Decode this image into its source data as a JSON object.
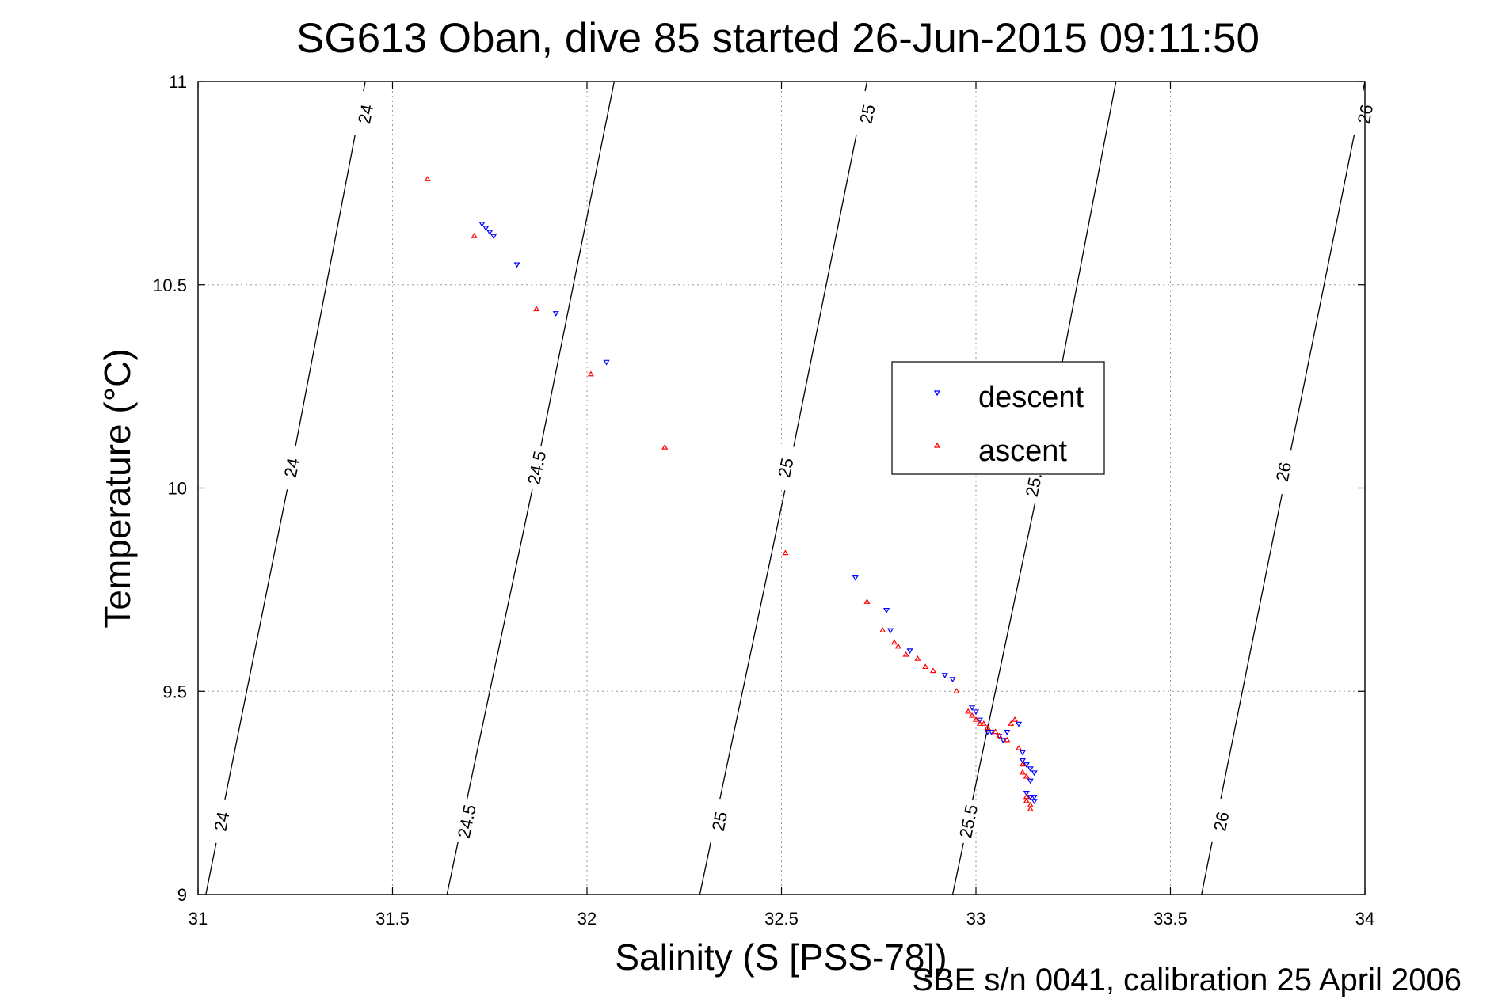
{
  "chart_data": {
    "type": "scatter",
    "title": "SG613 Oban, dive 85 started 26-Jun-2015 09:11:50",
    "xlabel": "Salinity (S [PSS-78])",
    "ylabel": "Temperature (°C)",
    "footnote": "SBE s/n 0041, calibration 25 April 2006",
    "xlim": [
      31,
      34
    ],
    "ylim": [
      9,
      11
    ],
    "xticks": [
      "31",
      "31.5",
      "32",
      "32.5",
      "33",
      "33.5",
      "34"
    ],
    "yticks": [
      "9",
      "9.5",
      "10",
      "10.5",
      "11"
    ],
    "grid": true,
    "legend_position": "center-right",
    "density_contours": [
      {
        "label": "24",
        "points": [
          [
            31.02,
            9.0
          ],
          [
            31.23,
            10.0
          ],
          [
            31.43,
            11.0
          ]
        ],
        "label_positions": [
          [
            31.06,
            9.18
          ],
          [
            31.24,
            10.05
          ],
          [
            31.43,
            10.92
          ]
        ]
      },
      {
        "label": "24.5",
        "points": [
          [
            31.64,
            9.0
          ],
          [
            31.86,
            10.0
          ],
          [
            32.07,
            11.0
          ]
        ],
        "label_positions": [
          [
            31.69,
            9.18
          ],
          [
            31.87,
            10.05
          ],
          null
        ]
      },
      {
        "label": "25",
        "points": [
          [
            32.29,
            9.0
          ],
          [
            32.51,
            10.0
          ],
          [
            32.72,
            11.0
          ]
        ],
        "label_positions": [
          [
            32.34,
            9.18
          ],
          [
            32.51,
            10.05
          ],
          [
            32.72,
            10.92
          ]
        ]
      },
      {
        "label": "25.5",
        "points": [
          [
            32.94,
            9.0
          ],
          [
            33.16,
            10.0
          ],
          [
            33.36,
            11.0
          ]
        ],
        "label_positions": [
          [
            32.98,
            9.18
          ],
          [
            33.15,
            10.02
          ],
          null
        ]
      },
      {
        "label": "26",
        "points": [
          [
            33.58,
            9.0
          ],
          [
            33.79,
            10.0
          ],
          [
            34.0,
            11.0
          ]
        ],
        "label_positions": [
          [
            33.63,
            9.18
          ],
          [
            33.79,
            10.04
          ],
          [
            34.0,
            10.92
          ]
        ]
      }
    ],
    "series": [
      {
        "name": "descent",
        "color": "#0000ff",
        "marker": "triangle-down",
        "points": [
          [
            31.73,
            10.65
          ],
          [
            31.74,
            10.64
          ],
          [
            31.75,
            10.63
          ],
          [
            31.76,
            10.62
          ],
          [
            31.82,
            10.55
          ],
          [
            31.92,
            10.43
          ],
          [
            32.05,
            10.31
          ],
          [
            32.69,
            9.78
          ],
          [
            32.77,
            9.7
          ],
          [
            32.78,
            9.65
          ],
          [
            32.83,
            9.6
          ],
          [
            32.92,
            9.54
          ],
          [
            32.94,
            9.53
          ],
          [
            32.99,
            9.46
          ],
          [
            33.0,
            9.45
          ],
          [
            33.01,
            9.43
          ],
          [
            33.03,
            9.4
          ],
          [
            33.04,
            9.4
          ],
          [
            33.06,
            9.39
          ],
          [
            33.07,
            9.38
          ],
          [
            33.08,
            9.4
          ],
          [
            33.11,
            9.42
          ],
          [
            33.12,
            9.35
          ],
          [
            33.12,
            9.33
          ],
          [
            33.13,
            9.32
          ],
          [
            33.14,
            9.31
          ],
          [
            33.15,
            9.3
          ],
          [
            33.14,
            9.28
          ],
          [
            33.13,
            9.25
          ],
          [
            33.14,
            9.24
          ],
          [
            33.15,
            9.23
          ],
          [
            33.15,
            9.24
          ]
        ]
      },
      {
        "name": "ascent",
        "color": "#ff0000",
        "marker": "triangle-up",
        "points": [
          [
            31.59,
            10.76
          ],
          [
            31.71,
            10.62
          ],
          [
            31.87,
            10.44
          ],
          [
            32.01,
            10.28
          ],
          [
            32.2,
            10.1
          ],
          [
            32.51,
            9.84
          ],
          [
            32.72,
            9.72
          ],
          [
            32.76,
            9.65
          ],
          [
            32.79,
            9.62
          ],
          [
            32.8,
            9.61
          ],
          [
            32.82,
            9.59
          ],
          [
            32.85,
            9.58
          ],
          [
            32.87,
            9.56
          ],
          [
            32.89,
            9.55
          ],
          [
            32.95,
            9.5
          ],
          [
            32.98,
            9.45
          ],
          [
            32.99,
            9.44
          ],
          [
            33.0,
            9.43
          ],
          [
            33.01,
            9.42
          ],
          [
            33.02,
            9.42
          ],
          [
            33.03,
            9.41
          ],
          [
            33.05,
            9.4
          ],
          [
            33.06,
            9.39
          ],
          [
            33.08,
            9.38
          ],
          [
            33.09,
            9.42
          ],
          [
            33.1,
            9.43
          ],
          [
            33.11,
            9.36
          ],
          [
            33.12,
            9.32
          ],
          [
            33.12,
            9.3
          ],
          [
            33.13,
            9.29
          ],
          [
            33.13,
            9.24
          ],
          [
            33.13,
            9.23
          ],
          [
            33.14,
            9.22
          ],
          [
            33.14,
            9.21
          ]
        ]
      }
    ]
  }
}
